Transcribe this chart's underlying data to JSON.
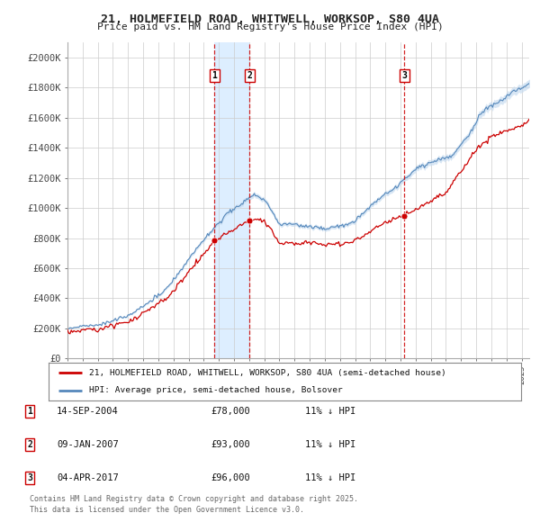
{
  "title": "21, HOLMEFIELD ROAD, WHITWELL, WORKSOP, S80 4UA",
  "subtitle": "Price paid vs. HM Land Registry's House Price Index (HPI)",
  "legend_line1": "21, HOLMEFIELD ROAD, WHITWELL, WORKSOP, S80 4UA (semi-detached house)",
  "legend_line2": "HPI: Average price, semi-detached house, Bolsover",
  "footnote1": "Contains HM Land Registry data © Crown copyright and database right 2025.",
  "footnote2": "This data is licensed under the Open Government Licence v3.0.",
  "transactions": [
    {
      "label": "1",
      "date": "14-SEP-2004",
      "price": "£78,000",
      "note": "11% ↓ HPI",
      "year": 2004.71
    },
    {
      "label": "2",
      "date": "09-JAN-2007",
      "price": "£93,000",
      "note": "11% ↓ HPI",
      "year": 2007.03
    },
    {
      "label": "3",
      "date": "04-APR-2017",
      "price": "£96,000",
      "note": "11% ↓ HPI",
      "year": 2017.25
    }
  ],
  "red_line_color": "#cc0000",
  "blue_line_color": "#5588bb",
  "blue_fill_color": "#c8dcf0",
  "shade_color": "#ddeeff",
  "vline_color": "#cc0000",
  "dot_color": "#cc0000",
  "background_color": "#ffffff",
  "grid_color": "#cccccc",
  "ylim": [
    0,
    210000
  ],
  "yticks": [
    0,
    20000,
    40000,
    60000,
    80000,
    100000,
    120000,
    140000,
    160000,
    180000,
    200000
  ],
  "year_start": 1995,
  "year_end": 2025.5
}
